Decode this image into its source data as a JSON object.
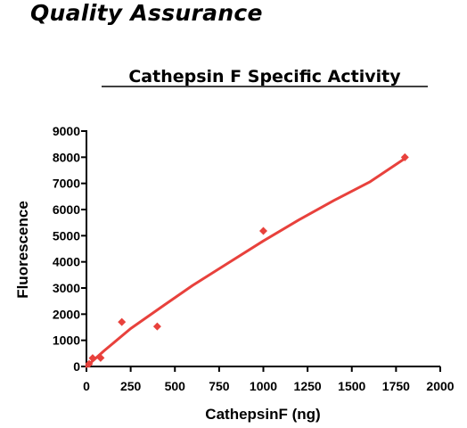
{
  "page": {
    "heading": "Quality Assurance"
  },
  "colors": {
    "series": "#e8413c",
    "axis": "#000000"
  },
  "chart_data": {
    "type": "scatter",
    "title": "Cathepsin F Specific Activity",
    "xlabel": "CathepsinF (ng)",
    "ylabel": "Fluorescence",
    "xlim": [
      0,
      2000
    ],
    "ylim": [
      0,
      9000
    ],
    "xticks": [
      0,
      250,
      500,
      750,
      1000,
      1250,
      1500,
      1750,
      2000
    ],
    "yticks": [
      0,
      1000,
      2000,
      3000,
      4000,
      5000,
      6000,
      7000,
      8000,
      9000
    ],
    "grid": false,
    "legend": "none",
    "points": [
      {
        "x": 15,
        "y": 100
      },
      {
        "x": 35,
        "y": 320
      },
      {
        "x": 80,
        "y": 330
      },
      {
        "x": 200,
        "y": 1700
      },
      {
        "x": 400,
        "y": 1530
      },
      {
        "x": 1000,
        "y": 5180
      },
      {
        "x": 1800,
        "y": 8000
      }
    ],
    "fit_curve": [
      {
        "x": 0,
        "y": 0
      },
      {
        "x": 100,
        "y": 600
      },
      {
        "x": 250,
        "y": 1450
      },
      {
        "x": 440,
        "y": 2350
      },
      {
        "x": 600,
        "y": 3100
      },
      {
        "x": 800,
        "y": 3950
      },
      {
        "x": 1000,
        "y": 4800
      },
      {
        "x": 1200,
        "y": 5600
      },
      {
        "x": 1400,
        "y": 6350
      },
      {
        "x": 1600,
        "y": 7050
      },
      {
        "x": 1800,
        "y": 7950
      }
    ]
  }
}
